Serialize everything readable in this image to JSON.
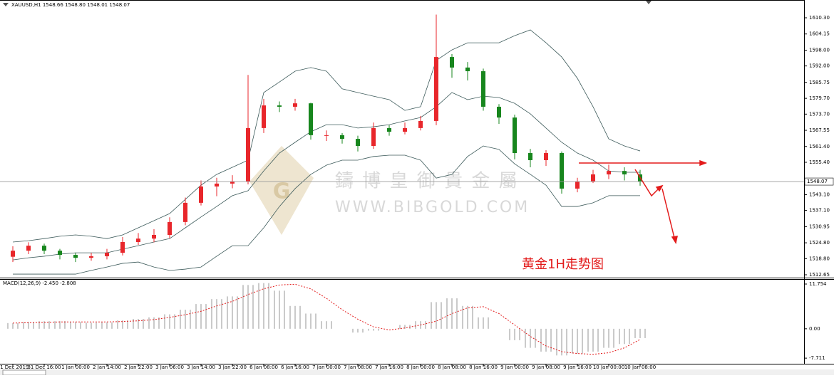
{
  "chart_data": [
    {
      "type": "candlestick",
      "title": "XAUUSD,H1  1548.66 1548.80 1548.01 1548.07",
      "categories": [
        "31 Dec 2019",
        null,
        "31 Dec 16:00",
        null,
        "1 Jan 00:00",
        null,
        "2 Jan 14:00",
        null,
        "2 Jan 22:00",
        null,
        "3 Jan 06:00",
        null,
        "3 Jan 14:00",
        null,
        "3 Jan 22:00",
        null,
        "6 Jan 08:00",
        null,
        "6 Jan 16:00",
        null,
        "7 Jan 00:00",
        null,
        "7 Jan 08:00",
        null,
        "7 Jan 16:00",
        null,
        "8 Jan 00:00",
        null,
        "8 Jan 08:00",
        null,
        "8 Jan 16:00",
        null,
        "9 Jan 00:00",
        null,
        "9 Jan 08:00",
        null,
        "9 Jan 16:00",
        null,
        "10 Jan 00:00",
        null,
        "10 Jan 08:00"
      ],
      "open": [
        1519.5,
        1521.8,
        1523.7,
        1521.8,
        1520.2,
        1519.1,
        1519.7,
        1521.0,
        1525.1,
        1526.4,
        1527.8,
        1532.7,
        1540.0,
        1546.2,
        1547.3,
        1548.1,
        1568.4,
        1577.0,
        1576.5,
        1577.8,
        1565.7,
        1565.7,
        1564.3,
        1561.6,
        1568.4,
        1567.0,
        1568.4,
        1571.1,
        1595.4,
        1591.4,
        1590.0,
        1576.5,
        1572.4,
        1558.9,
        1556.2,
        1558.9,
        1545.4,
        1548.1,
        1550.8,
        1552.1,
        1550.8
      ],
      "high": [
        1523.5,
        1525.0,
        1524.5,
        1522.5,
        1521.0,
        1521.0,
        1522.5,
        1527.0,
        1528.5,
        1530.0,
        1534.5,
        1542.0,
        1548.5,
        1549.5,
        1550.5,
        1588.6,
        1579.5,
        1578.5,
        1579.5,
        1578.0,
        1567.5,
        1566.5,
        1565.5,
        1570.5,
        1569.5,
        1570.5,
        1573.0,
        1611.5,
        1596.5,
        1593.5,
        1591.0,
        1577.5,
        1573.5,
        1560.5,
        1560.0,
        1559.5,
        1549.5,
        1552.5,
        1554.5,
        1553.5,
        1552.5
      ],
      "low": [
        1517.5,
        1520.5,
        1520.5,
        1518.5,
        1517.5,
        1518.0,
        1518.5,
        1520.0,
        1524.0,
        1525.0,
        1526.5,
        1531.5,
        1539.0,
        1542.5,
        1545.5,
        1547.0,
        1566.5,
        1574.5,
        1575.0,
        1564.0,
        1563.5,
        1562.5,
        1559.5,
        1560.5,
        1565.5,
        1566.0,
        1567.5,
        1569.5,
        1587.5,
        1586.5,
        1575.0,
        1570.0,
        1556.5,
        1553.5,
        1554.0,
        1543.5,
        1544.0,
        1547.5,
        1549.0,
        1548.5,
        1546.5
      ],
      "close": [
        1521.8,
        1523.7,
        1521.8,
        1520.2,
        1519.1,
        1519.7,
        1521.0,
        1525.1,
        1526.4,
        1527.8,
        1532.7,
        1540.0,
        1546.2,
        1547.3,
        1548.1,
        1568.4,
        1577.0,
        1576.5,
        1577.8,
        1565.7,
        1565.7,
        1564.3,
        1561.6,
        1568.4,
        1567.0,
        1568.4,
        1571.1,
        1595.4,
        1591.4,
        1590.0,
        1576.5,
        1572.4,
        1558.9,
        1556.2,
        1558.9,
        1545.4,
        1548.1,
        1550.8,
        1552.1,
        1550.8,
        1548.1
      ],
      "up_color": "#e8262b",
      "down_color": "#17861d",
      "upper_band": [
        1525.1,
        1525.6,
        1526.4,
        1527.3,
        1527.8,
        1527.3,
        1526.4,
        1527.8,
        1530.5,
        1533.2,
        1535.9,
        1541.3,
        1546.7,
        1550.8,
        1553.5,
        1556.2,
        1581.9,
        1585.9,
        1590.0,
        1591.4,
        1590.0,
        1583.3,
        1581.9,
        1580.5,
        1579.2,
        1575.1,
        1576.5,
        1594.1,
        1598.1,
        1600.8,
        1600.8,
        1600.8,
        1603.5,
        1605.7,
        1600.8,
        1595.4,
        1587.3,
        1576.5,
        1564.3,
        1561.6,
        1559.7
      ],
      "middle_band": [
        1518.3,
        1519.1,
        1519.7,
        1520.5,
        1521.0,
        1521.0,
        1521.0,
        1522.4,
        1523.7,
        1525.1,
        1526.4,
        1530.5,
        1534.6,
        1538.6,
        1542.7,
        1544.6,
        1552.1,
        1558.9,
        1563.0,
        1567.0,
        1569.7,
        1569.7,
        1568.4,
        1568.9,
        1569.7,
        1571.1,
        1572.4,
        1576.5,
        1581.9,
        1579.2,
        1580.5,
        1580.0,
        1577.8,
        1573.8,
        1568.4,
        1563.0,
        1558.9,
        1556.2,
        1552.1,
        1551.6,
        1551.6
      ],
      "lower_band": [
        1512.9,
        1512.9,
        1512.9,
        1512.9,
        1512.9,
        1514.3,
        1515.6,
        1517.0,
        1517.5,
        1515.6,
        1514.3,
        1514.8,
        1515.6,
        1519.7,
        1523.7,
        1523.7,
        1530.5,
        1538.6,
        1545.4,
        1550.8,
        1554.3,
        1556.2,
        1556.2,
        1557.6,
        1558.1,
        1558.1,
        1556.2,
        1549.4,
        1550.8,
        1557.6,
        1561.6,
        1560.3,
        1554.8,
        1550.8,
        1546.7,
        1538.6,
        1538.6,
        1540.0,
        1542.7,
        1542.7,
        1542.7
      ],
      "band_color": "#3c5a5a",
      "last_price": 1548.07,
      "ylim": [
        1511.57,
        1617.06
      ],
      "yticks": [
        {
          "value": 1610.3,
          "label": "1610.30"
        },
        1604.15,
        {
          "value": 1598.0,
          "label": "1598.00"
        },
        {
          "value": 1592.0,
          "label": "1592.00"
        },
        1585.75,
        {
          "value": 1579.7,
          "label": "1579.70"
        },
        {
          "value": 1573.7,
          "label": "1573.70"
        },
        1567.55,
        {
          "value": 1561.4,
          "label": "1561.40"
        },
        {
          "value": 1555.4,
          "label": "1555.40"
        },
        {
          "value": 1543.1,
          "label": "1543.10"
        },
        {
          "value": 1537.1,
          "label": "1537.10"
        },
        1530.95,
        {
          "value": 1524.8,
          "label": "1524.80"
        },
        {
          "value": 1518.8,
          "label": "1518.80"
        },
        1512.65
      ],
      "watermark": "鑄 博 皇 御 貴 金 屬",
      "watermark_url": "WWW.BIBGOLD.COM",
      "annotation": "黄金1H走势图"
    },
    {
      "type": "macd",
      "title": "MACD(12,26,9) -2.450 -2.808",
      "histogram": [
        1.5,
        1.8,
        2.0,
        2.0,
        1.8,
        1.6,
        1.7,
        2.2,
        2.6,
        3.0,
        3.8,
        5.0,
        6.5,
        7.8,
        8.5,
        11.5,
        12.0,
        10.0,
        6.0,
        4.0,
        2.0,
        0.0,
        -1.0,
        -0.5,
        0.0,
        1.0,
        2.0,
        7.0,
        8.0,
        6.0,
        3.0,
        0.0,
        -3.0,
        -5.0,
        -6.0,
        -7.0,
        -6.5,
        -6.0,
        -5.0,
        -4.0,
        -2.45
      ],
      "signal": [
        1.5,
        1.6,
        1.7,
        1.8,
        1.8,
        1.8,
        1.8,
        1.9,
        2.1,
        2.4,
        3.0,
        3.7,
        4.6,
        6.0,
        7.2,
        9.0,
        10.5,
        11.5,
        11.7,
        10.5,
        8.0,
        5.0,
        2.5,
        0.5,
        -0.3,
        0.2,
        1.0,
        2.0,
        4.0,
        5.5,
        5.8,
        4.0,
        1.0,
        -2.0,
        -4.5,
        -6.0,
        -6.5,
        -6.7,
        -6.3,
        -5.0,
        -2.808
      ],
      "histogram_color": "#b4b4b4",
      "signal_color": "#e31b1b",
      "ylim": [
        -9,
        12.5
      ],
      "yticks": [
        11.754,
        {
          "value": 0,
          "label": "0.00"
        },
        -7.711
      ]
    }
  ]
}
